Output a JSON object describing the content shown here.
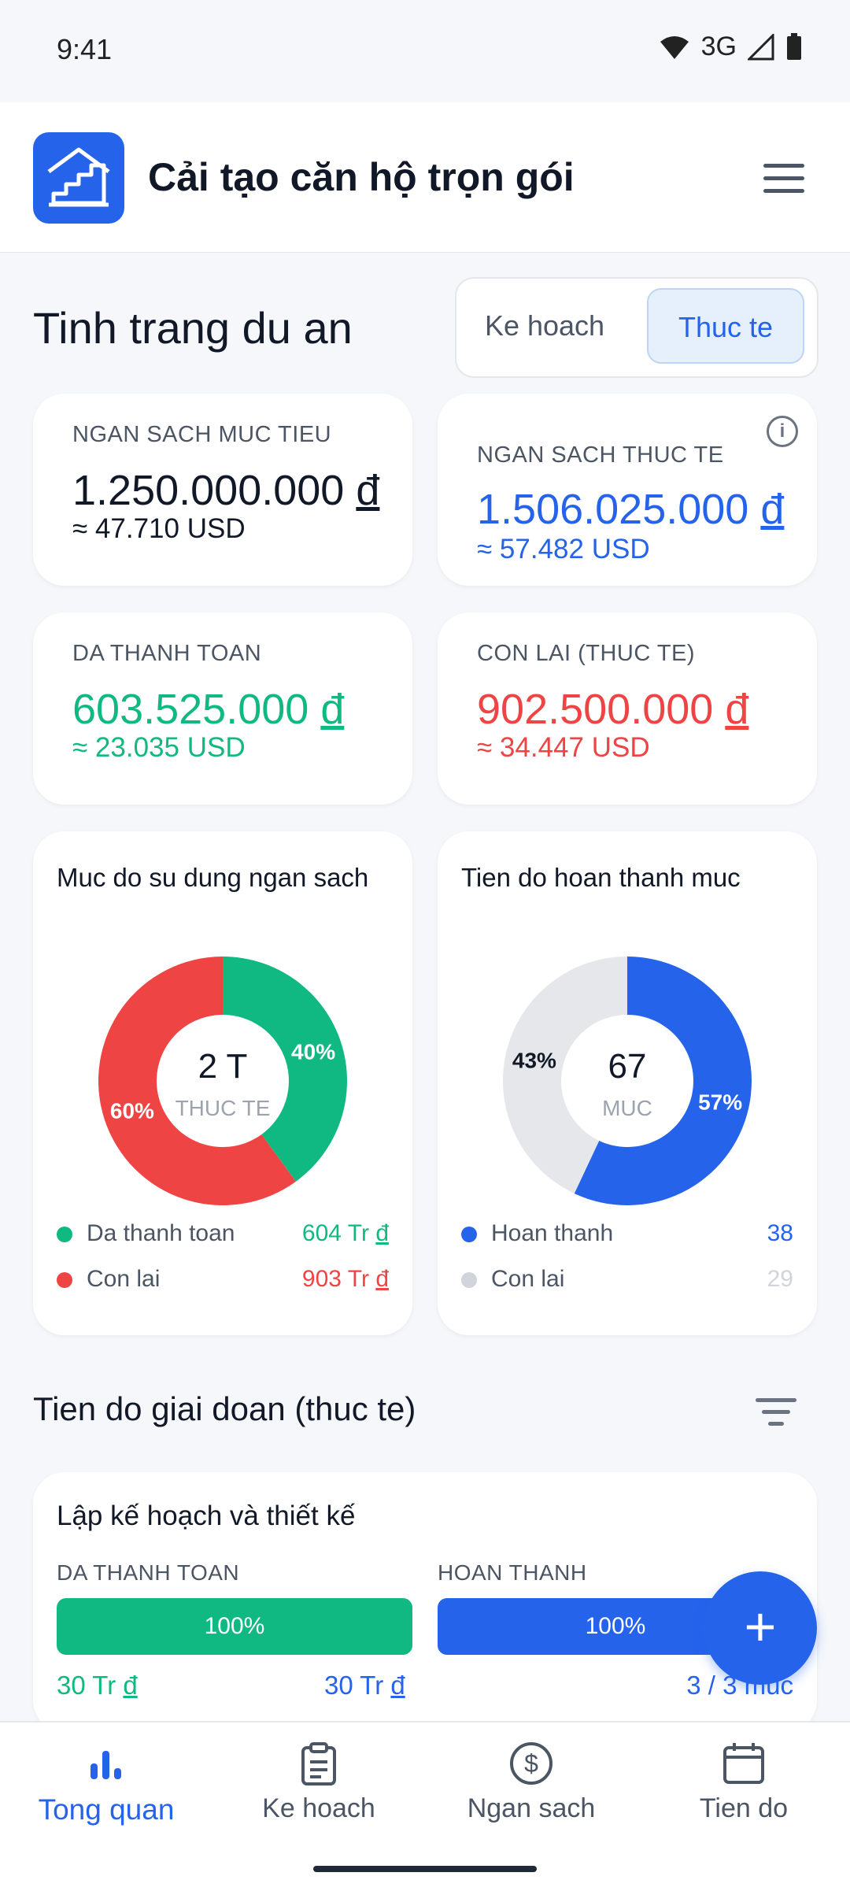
{
  "status": {
    "time": "9:41",
    "network": "3G"
  },
  "app": {
    "title": "Cải tạo căn hộ trọn gói"
  },
  "section_title": "Tinh trang du an",
  "toggle": {
    "options": [
      "Ke hoach",
      "Thuc te"
    ],
    "selected": "Thuc te"
  },
  "cards": {
    "target": {
      "label": "NGAN SACH MUC TIEU",
      "value": "1.250.000.000",
      "currency": "đ",
      "usd": "≈ 47.710 USD"
    },
    "actual": {
      "label": "NGAN SACH THUC TE",
      "value": "1.506.025.000",
      "currency": "đ",
      "usd": "≈ 57.482 USD"
    },
    "paid": {
      "label": "DA THANH TOAN",
      "value": "603.525.000",
      "currency": "đ",
      "usd": "≈ 23.035 USD"
    },
    "remaining": {
      "label": "CON LAI (THUC TE)",
      "value": "902.500.000",
      "currency": "đ",
      "usd": "≈ 34.447 USD"
    }
  },
  "colors": {
    "accent": "#2563eb",
    "green": "#10b981",
    "red": "#ef4444",
    "grey": "#e5e7eb"
  },
  "budget_chart": {
    "title": "Muc do su dung ngan sach",
    "center_value": "2 T",
    "center_label": "THUC TE",
    "slices": [
      {
        "label": "Da thanh toan",
        "percent": 40,
        "percent_text": "40%",
        "value_text": "604 Tr",
        "currency": "đ"
      },
      {
        "label": "Con lai",
        "percent": 60,
        "percent_text": "60%",
        "value_text": "903 Tr",
        "currency": "đ"
      }
    ]
  },
  "progress_chart": {
    "title": "Tien do hoan thanh muc",
    "center_value": "67",
    "center_label": "MUC",
    "slices": [
      {
        "label": "Hoan thanh",
        "percent": 57,
        "percent_text": "57%",
        "value_text": "38"
      },
      {
        "label": "Con lai",
        "percent": 43,
        "percent_text": "43%",
        "value_text": "29"
      }
    ]
  },
  "phase_section": {
    "title": "Tien do giai doan (thuc te)"
  },
  "phase": {
    "title": "Lập kế hoạch và thiết kế",
    "paid_label": "DA THANH TOAN",
    "paid_fraction": 1.0,
    "paid_text": "100%",
    "paid_amount": "30 Tr",
    "paid_total": "30 Tr",
    "done_label": "HOAN THANH",
    "done_fraction": 1.0,
    "done_text": "100%",
    "done_count": "3 / 3 muc",
    "currency": "đ"
  },
  "fab": {
    "label": "+"
  },
  "nav": [
    {
      "label": "Tong quan",
      "icon": "bar-chart-icon",
      "active": true
    },
    {
      "label": "Ke hoach",
      "icon": "clipboard-icon",
      "active": false
    },
    {
      "label": "Ngan sach",
      "icon": "dollar-circle-icon",
      "active": false
    },
    {
      "label": "Tien do",
      "icon": "calendar-icon",
      "active": false
    }
  ]
}
